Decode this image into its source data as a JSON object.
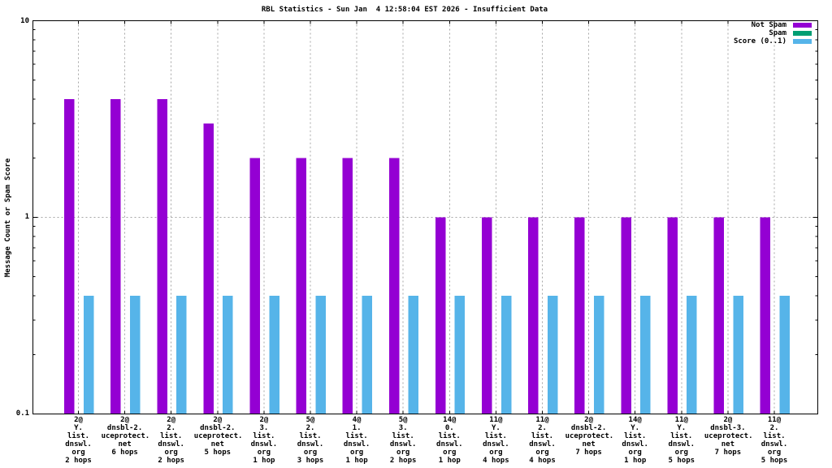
{
  "title": "RBL Statistics - Sun Jan  4 12:58:04 EST 2026 - Insufficient Data",
  "chart_data": {
    "type": "bar",
    "title": "RBL Statistics - Sun Jan  4 12:58:04 EST 2026 - Insufficient Data",
    "ylabel": "Message Count or Spam Score",
    "xlabel": "",
    "yscale": "log",
    "ylim": [
      0.1,
      10
    ],
    "ytick_labels": [
      "10",
      "1",
      "0.1"
    ],
    "grid": true,
    "legend_position": "top-right",
    "categories": [
      [
        "2@",
        "Y.",
        "list.",
        "dnswl.",
        "org",
        "2 hops"
      ],
      [
        "2@",
        "dnsbl-2.",
        "uceprotect.",
        "net",
        "6 hops"
      ],
      [
        "2@",
        "2.",
        "list.",
        "dnswl.",
        "org",
        "2 hops"
      ],
      [
        "2@",
        "dnsbl-2.",
        "uceprotect.",
        "net",
        "5 hops"
      ],
      [
        "2@",
        "3.",
        "list.",
        "dnswl.",
        "org",
        "1 hop"
      ],
      [
        "5@",
        "2.",
        "list.",
        "dnswl.",
        "org",
        "3 hops"
      ],
      [
        "4@",
        "1.",
        "list.",
        "dnswl.",
        "org",
        "1 hop"
      ],
      [
        "5@",
        "3.",
        "list.",
        "dnswl.",
        "org",
        "2 hops"
      ],
      [
        "14@",
        "0.",
        "list.",
        "dnswl.",
        "org",
        "1 hop"
      ],
      [
        "11@",
        "Y.",
        "list.",
        "dnswl.",
        "org",
        "4 hops"
      ],
      [
        "11@",
        "2.",
        "list.",
        "dnswl.",
        "org",
        "4 hops"
      ],
      [
        "2@",
        "dnsbl-2.",
        "uceprotect.",
        "net",
        "7 hops"
      ],
      [
        "14@",
        "Y.",
        "list.",
        "dnswl.",
        "org",
        "1 hop"
      ],
      [
        "11@",
        "Y.",
        "list.",
        "dnswl.",
        "org",
        "5 hops"
      ],
      [
        "2@",
        "dnsbl-3.",
        "uceprotect.",
        "net",
        "7 hops"
      ],
      [
        "11@",
        "2.",
        "list.",
        "dnswl.",
        "org",
        "5 hops"
      ]
    ],
    "series": [
      {
        "name": "Not Spam",
        "color": "#9400D3",
        "values": [
          4,
          4,
          4,
          3,
          2,
          2,
          2,
          2,
          1,
          1,
          1,
          1,
          1,
          1,
          1,
          1
        ]
      },
      {
        "name": "Spam",
        "color": "#009E73",
        "values": [
          0,
          0,
          0,
          0,
          0,
          0,
          0,
          0,
          0,
          0,
          0,
          0,
          0,
          0,
          0,
          0
        ]
      },
      {
        "name": "Score (0..1)",
        "color": "#56B4E9",
        "values": [
          0.4,
          0.4,
          0.4,
          0.4,
          0.4,
          0.4,
          0.4,
          0.4,
          0.4,
          0.4,
          0.4,
          0.4,
          0.4,
          0.4,
          0.4,
          0.4
        ]
      }
    ],
    "colors": {
      "grid": "#a6a6a6",
      "axis": "#000000",
      "background": "#ffffff"
    }
  }
}
